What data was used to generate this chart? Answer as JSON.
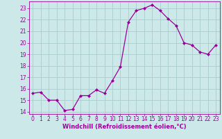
{
  "x": [
    0,
    1,
    2,
    3,
    4,
    5,
    6,
    7,
    8,
    9,
    10,
    11,
    12,
    13,
    14,
    15,
    16,
    17,
    18,
    19,
    20,
    21,
    22,
    23
  ],
  "y": [
    15.6,
    15.7,
    15.0,
    15.0,
    14.1,
    14.2,
    15.4,
    15.4,
    15.9,
    15.6,
    16.7,
    17.9,
    21.8,
    22.8,
    23.0,
    23.3,
    22.8,
    22.1,
    21.5,
    20.0,
    19.8,
    19.2,
    19.0,
    19.8
  ],
  "line_color": "#990099",
  "marker": "D",
  "marker_size": 2.0,
  "bg_color": "#cce8e8",
  "grid_color": "#aacccc",
  "xlabel": "Windchill (Refroidissement éolien,°C)",
  "xlabel_color": "#990099",
  "tick_color": "#990099",
  "ylim": [
    13.8,
    23.6
  ],
  "xlim": [
    -0.5,
    23.5
  ],
  "yticks": [
    14,
    15,
    16,
    17,
    18,
    19,
    20,
    21,
    22,
    23
  ],
  "xticks": [
    0,
    1,
    2,
    3,
    4,
    5,
    6,
    7,
    8,
    9,
    10,
    11,
    12,
    13,
    14,
    15,
    16,
    17,
    18,
    19,
    20,
    21,
    22,
    23
  ],
  "tick_fontsize": 5.5,
  "xlabel_fontsize": 6.0,
  "linewidth": 0.9
}
